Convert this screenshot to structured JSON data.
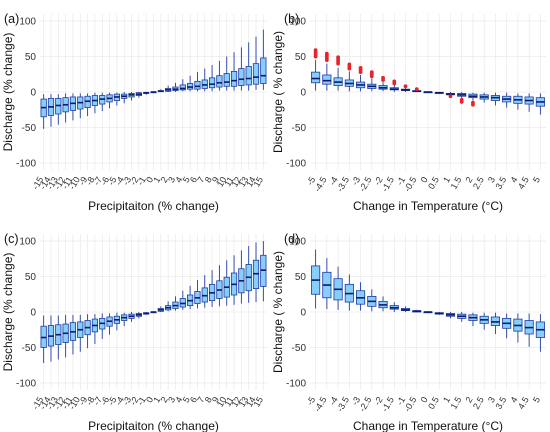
{
  "colors": {
    "box_fill": "#87CEFA",
    "box_edge": "#1f3aa6",
    "median": "#0b1a6e",
    "outlier": "#e8232d",
    "grid": "#e6e6e6"
  },
  "chart_data": [
    {
      "panel": "(a)",
      "type": "box",
      "xlabel": "Precipitaiton (% change)",
      "ylabel": "Discharge (% change)",
      "ylim": [
        -110,
        110
      ],
      "yticks": [
        -100,
        -50,
        0,
        50,
        100
      ],
      "grid": true,
      "categories": [
        "-15",
        "-14",
        "-13",
        "-12",
        "-11",
        "-10",
        "-9",
        "-8",
        "-7",
        "-6",
        "-5",
        "-4",
        "-3",
        "-2",
        "-1",
        "0",
        "1",
        "2",
        "3",
        "4",
        "5",
        "6",
        "7",
        "8",
        "9",
        "10",
        "11",
        "12",
        "13",
        "14",
        "15"
      ],
      "tick_labels": [
        "-15",
        "-14",
        "-13",
        "-12",
        "-11",
        "-10",
        "-9",
        "-8",
        "-7",
        "-6",
        "-5",
        "-4",
        "-3",
        "-2",
        "-1",
        "0",
        "1",
        "2",
        "3",
        "4",
        "5",
        "6",
        "7",
        "8",
        "9",
        "10",
        "11",
        "12",
        "13",
        "14",
        "15"
      ],
      "boxes": [
        {
          "min": -52,
          "q1": -35,
          "median": -22,
          "q3": -10,
          "max": -3
        },
        {
          "min": -49,
          "q1": -33,
          "median": -21,
          "q3": -9,
          "max": -3
        },
        {
          "min": -46,
          "q1": -31,
          "median": -19,
          "q3": -9,
          "max": -3
        },
        {
          "min": -43,
          "q1": -28,
          "median": -18,
          "q3": -8,
          "max": -2
        },
        {
          "min": -40,
          "q1": -26,
          "median": -16,
          "q3": -7,
          "max": -2
        },
        {
          "min": -37,
          "q1": -24,
          "median": -15,
          "q3": -7,
          "max": -2
        },
        {
          "min": -34,
          "q1": -22,
          "median": -13,
          "q3": -6,
          "max": -2
        },
        {
          "min": -30,
          "q1": -19,
          "median": -12,
          "q3": -5,
          "max": -1
        },
        {
          "min": -27,
          "q1": -17,
          "median": -10,
          "q3": -5,
          "max": -1
        },
        {
          "min": -23,
          "q1": -14,
          "median": -9,
          "q3": -4,
          "max": -1
        },
        {
          "min": -19,
          "q1": -12,
          "median": -7,
          "q3": -3,
          "max": -1
        },
        {
          "min": -16,
          "q1": -9,
          "median": -6,
          "q3": -3,
          "max": 0
        },
        {
          "min": -12,
          "q1": -7,
          "median": -4,
          "q3": -2,
          "max": 0
        },
        {
          "min": -8,
          "q1": -5,
          "median": -3,
          "q3": -1,
          "max": 0
        },
        {
          "min": -4,
          "q1": -2,
          "median": -1,
          "q3": -1,
          "max": 0
        },
        {
          "min": 0,
          "q1": 0,
          "median": 0,
          "q3": 0,
          "max": 0
        },
        {
          "min": 0,
          "q1": 1,
          "median": 1,
          "q3": 2,
          "max": 4
        },
        {
          "min": 0,
          "q1": 1,
          "median": 3,
          "q3": 5,
          "max": 9
        },
        {
          "min": 0,
          "q1": 2,
          "median": 4,
          "q3": 7,
          "max": 13
        },
        {
          "min": 1,
          "q1": 3,
          "median": 5,
          "q3": 10,
          "max": 18
        },
        {
          "min": 1,
          "q1": 4,
          "median": 7,
          "q3": 12,
          "max": 23
        },
        {
          "min": 1,
          "q1": 4,
          "median": 8,
          "q3": 15,
          "max": 28
        },
        {
          "min": 1,
          "q1": 5,
          "median": 10,
          "q3": 17,
          "max": 33
        },
        {
          "min": 1,
          "q1": 6,
          "median": 11,
          "q3": 20,
          "max": 38
        },
        {
          "min": 2,
          "q1": 7,
          "median": 13,
          "q3": 23,
          "max": 44
        },
        {
          "min": 2,
          "q1": 8,
          "median": 14,
          "q3": 26,
          "max": 50
        },
        {
          "min": 2,
          "q1": 8,
          "median": 16,
          "q3": 29,
          "max": 56
        },
        {
          "min": 2,
          "q1": 9,
          "median": 18,
          "q3": 33,
          "max": 63
        },
        {
          "min": 2,
          "q1": 10,
          "median": 19,
          "q3": 36,
          "max": 70
        },
        {
          "min": 3,
          "q1": 11,
          "median": 21,
          "q3": 40,
          "max": 78
        },
        {
          "min": 3,
          "q1": 12,
          "median": 23,
          "q3": 48,
          "max": 88
        }
      ],
      "outliers": []
    },
    {
      "panel": "(b)",
      "type": "box",
      "xlabel": "Change in Temperature (°C)",
      "ylabel": "Discharge ( % change)",
      "ylim": [
        -110,
        110
      ],
      "yticks": [
        -100,
        -50,
        0,
        50,
        100
      ],
      "grid": true,
      "categories": [
        "-5",
        "-4.5",
        "-4",
        "-3.5",
        "-3",
        "-2.5",
        "-2",
        "-1.5",
        "-1",
        "-0.5",
        "0",
        "0.5",
        "1",
        "1.5",
        "2",
        "2.5",
        "3",
        "3.5",
        "4",
        "4.5",
        "5"
      ],
      "tick_labels": [
        "-5",
        "-4.5",
        "-4",
        "-3.5",
        "-3",
        "-2.5",
        "-2",
        "-1.5",
        "-1",
        "-0.5",
        "0",
        "0.5",
        "1",
        "1.5",
        "2",
        "2.5",
        "3",
        "3.5",
        "4",
        "4.5",
        "5"
      ],
      "boxes": [
        {
          "min": 2,
          "q1": 13,
          "median": 19,
          "q3": 28,
          "max": 45
        },
        {
          "min": 2,
          "q1": 11,
          "median": 16,
          "q3": 24,
          "max": 40
        },
        {
          "min": 2,
          "q1": 9,
          "median": 14,
          "q3": 20,
          "max": 34
        },
        {
          "min": 1,
          "q1": 8,
          "median": 12,
          "q3": 17,
          "max": 29
        },
        {
          "min": 1,
          "q1": 6,
          "median": 10,
          "q3": 14,
          "max": 24
        },
        {
          "min": 1,
          "q1": 5,
          "median": 8,
          "q3": 11,
          "max": 19
        },
        {
          "min": 1,
          "q1": 4,
          "median": 6,
          "q3": 9,
          "max": 14
        },
        {
          "min": 0,
          "q1": 3,
          "median": 4,
          "q3": 6,
          "max": 10
        },
        {
          "min": 0,
          "q1": 2,
          "median": 3,
          "q3": 4,
          "max": 6
        },
        {
          "min": 0,
          "q1": 1,
          "median": 1,
          "q3": 2,
          "max": 3
        },
        {
          "min": 0,
          "q1": 0,
          "median": 0,
          "q3": 0,
          "max": 0
        },
        {
          "min": -3,
          "q1": -2,
          "median": -1,
          "q3": -1,
          "max": 0
        },
        {
          "min": -6,
          "q1": -4,
          "median": -3,
          "q3": -2,
          "max": 0
        },
        {
          "min": -9,
          "q1": -6,
          "median": -4,
          "q3": -2,
          "max": 0
        },
        {
          "min": -12,
          "q1": -8,
          "median": -6,
          "q3": -3,
          "max": -1
        },
        {
          "min": -15,
          "q1": -10,
          "median": -7,
          "q3": -4,
          "max": -1
        },
        {
          "min": -19,
          "q1": -12,
          "median": -8,
          "q3": -5,
          "max": -1
        },
        {
          "min": -22,
          "q1": -14,
          "median": -10,
          "q3": -6,
          "max": -1
        },
        {
          "min": -25,
          "q1": -16,
          "median": -11,
          "q3": -6,
          "max": -2
        },
        {
          "min": -28,
          "q1": -17,
          "median": -12,
          "q3": -7,
          "max": -2
        },
        {
          "min": -32,
          "q1": -20,
          "median": -14,
          "q3": -8,
          "max": -2
        }
      ],
      "outliers": [
        {
          "category": "-5",
          "values": [
            50,
            53,
            56,
            59
          ]
        },
        {
          "category": "-4.5",
          "values": [
            45,
            48,
            51,
            54
          ]
        },
        {
          "category": "-4",
          "values": [
            40,
            43,
            46,
            49
          ]
        },
        {
          "category": "-3.5",
          "values": [
            33,
            36,
            39
          ]
        },
        {
          "category": "-3",
          "values": [
            28,
            31,
            34
          ]
        },
        {
          "category": "-2.5",
          "values": [
            22,
            25,
            28
          ]
        },
        {
          "category": "-2",
          "values": [
            17,
            20
          ]
        },
        {
          "category": "-1.5",
          "values": [
            12,
            15
          ]
        },
        {
          "category": "-1",
          "values": [
            8
          ]
        },
        {
          "category": "-0.5",
          "values": [
            4
          ]
        },
        {
          "category": "1",
          "values": [
            -6
          ]
        },
        {
          "category": "1.5",
          "values": [
            -11,
            -14
          ]
        },
        {
          "category": "2",
          "values": [
            -15,
            -18
          ]
        }
      ]
    },
    {
      "panel": "(c)",
      "type": "box",
      "xlabel": "Precipitaiton (% change)",
      "ylabel": "Discharge (% change)",
      "ylim": [
        -110,
        110
      ],
      "yticks": [
        -100,
        -50,
        0,
        50,
        100
      ],
      "grid": true,
      "categories": [
        "-15",
        "-14",
        "-13",
        "-12",
        "-11",
        "-10",
        "-9",
        "-8",
        "-7",
        "-6",
        "-5",
        "-4",
        "-3",
        "-2",
        "-1",
        "0",
        "1",
        "2",
        "3",
        "4",
        "5",
        "6",
        "7",
        "8",
        "9",
        "10",
        "11",
        "12",
        "13",
        "14",
        "15"
      ],
      "tick_labels": [
        "-15",
        "-14",
        "-13",
        "-12",
        "-11",
        "-10",
        "-9",
        "-8",
        "-7",
        "-6",
        "-5",
        "-4",
        "-3",
        "-2",
        "-1",
        "0",
        "1",
        "2",
        "3",
        "4",
        "5",
        "6",
        "7",
        "8",
        "9",
        "10",
        "11",
        "12",
        "13",
        "14",
        "15"
      ],
      "boxes": [
        {
          "min": -72,
          "q1": -50,
          "median": -36,
          "q3": -20,
          "max": -5
        },
        {
          "min": -70,
          "q1": -48,
          "median": -34,
          "q3": -19,
          "max": -5
        },
        {
          "min": -67,
          "q1": -46,
          "median": -32,
          "q3": -18,
          "max": -5
        },
        {
          "min": -64,
          "q1": -43,
          "median": -30,
          "q3": -17,
          "max": -4
        },
        {
          "min": -60,
          "q1": -40,
          "median": -28,
          "q3": -15,
          "max": -4
        },
        {
          "min": -56,
          "q1": -36,
          "median": -25,
          "q3": -14,
          "max": -4
        },
        {
          "min": -51,
          "q1": -32,
          "median": -22,
          "q3": -12,
          "max": -3
        },
        {
          "min": -45,
          "q1": -28,
          "median": -19,
          "q3": -10,
          "max": -3
        },
        {
          "min": -38,
          "q1": -24,
          "median": -16,
          "q3": -9,
          "max": -2
        },
        {
          "min": -32,
          "q1": -20,
          "median": -13,
          "q3": -7,
          "max": -2
        },
        {
          "min": -26,
          "q1": -16,
          "median": -11,
          "q3": -6,
          "max": -1
        },
        {
          "min": -20,
          "q1": -12,
          "median": -8,
          "q3": -4,
          "max": -1
        },
        {
          "min": -14,
          "q1": -9,
          "median": -6,
          "q3": -3,
          "max": 0
        },
        {
          "min": -9,
          "q1": -6,
          "median": -4,
          "q3": -2,
          "max": 0
        },
        {
          "min": -4,
          "q1": -3,
          "median": -2,
          "q3": -1,
          "max": 0
        },
        {
          "min": 0,
          "q1": 0,
          "median": 0,
          "q3": 0,
          "max": 0
        },
        {
          "min": 0,
          "q1": 1,
          "median": 3,
          "q3": 5,
          "max": 8
        },
        {
          "min": 1,
          "q1": 3,
          "median": 6,
          "q3": 9,
          "max": 15
        },
        {
          "min": 2,
          "q1": 5,
          "median": 9,
          "q3": 14,
          "max": 22
        },
        {
          "min": 3,
          "q1": 7,
          "median": 12,
          "q3": 19,
          "max": 30
        },
        {
          "min": 4,
          "q1": 9,
          "median": 16,
          "q3": 24,
          "max": 37
        },
        {
          "min": 5,
          "q1": 12,
          "median": 20,
          "q3": 29,
          "max": 45
        },
        {
          "min": 6,
          "q1": 14,
          "median": 23,
          "q3": 34,
          "max": 52
        },
        {
          "min": 7,
          "q1": 16,
          "median": 27,
          "q3": 39,
          "max": 59
        },
        {
          "min": 8,
          "q1": 19,
          "median": 31,
          "q3": 44,
          "max": 66
        },
        {
          "min": 9,
          "q1": 21,
          "median": 35,
          "q3": 49,
          "max": 73
        },
        {
          "min": 10,
          "q1": 24,
          "median": 39,
          "q3": 55,
          "max": 80
        },
        {
          "min": 12,
          "q1": 27,
          "median": 44,
          "q3": 61,
          "max": 87
        },
        {
          "min": 13,
          "q1": 30,
          "median": 49,
          "q3": 67,
          "max": 93
        },
        {
          "min": 14,
          "q1": 33,
          "median": 54,
          "q3": 73,
          "max": 98
        },
        {
          "min": 15,
          "q1": 36,
          "median": 59,
          "q3": 80,
          "max": 100
        }
      ],
      "outliers": []
    },
    {
      "panel": "(d)",
      "type": "box",
      "xlabel": "Change in Temperature (°C)",
      "ylabel": "Discharge ( % change)",
      "ylim": [
        -110,
        110
      ],
      "yticks": [
        -100,
        -50,
        0,
        50,
        100
      ],
      "grid": true,
      "categories": [
        "-5",
        "-4.5",
        "-4",
        "-3.5",
        "-3",
        "-2.5",
        "-2",
        "-1.5",
        "-1",
        "-0.5",
        "0",
        "0.5",
        "1",
        "1.5",
        "2",
        "2.5",
        "3",
        "3.5",
        "4",
        "4.5",
        "5"
      ],
      "tick_labels": [
        "-5",
        "-4.5",
        "-4",
        "-3.5",
        "-3",
        "-2.5",
        "-2",
        "-1.5",
        "-1",
        "-0.5",
        "0",
        "0.5",
        "1",
        "1.5",
        "2",
        "2.5",
        "3",
        "3.5",
        "4",
        "4.5",
        "5"
      ],
      "boxes": [
        {
          "min": 5,
          "q1": 25,
          "median": 45,
          "q3": 65,
          "max": 88
        },
        {
          "min": 4,
          "q1": 20,
          "median": 38,
          "q3": 56,
          "max": 76
        },
        {
          "min": 3,
          "q1": 17,
          "median": 32,
          "q3": 47,
          "max": 64
        },
        {
          "min": 2,
          "q1": 14,
          "median": 26,
          "q3": 39,
          "max": 53
        },
        {
          "min": 2,
          "q1": 11,
          "median": 20,
          "q3": 30,
          "max": 42
        },
        {
          "min": 1,
          "q1": 8,
          "median": 15,
          "q3": 22,
          "max": 32
        },
        {
          "min": 1,
          "q1": 6,
          "median": 10,
          "q3": 15,
          "max": 22
        },
        {
          "min": 0,
          "q1": 4,
          "median": 6,
          "q3": 9,
          "max": 14
        },
        {
          "min": 0,
          "q1": 2,
          "median": 3,
          "q3": 5,
          "max": 8
        },
        {
          "min": 0,
          "q1": 0,
          "median": 1,
          "q3": 2,
          "max": 3
        },
        {
          "min": 0,
          "q1": 0,
          "median": 0,
          "q3": 0,
          "max": 0
        },
        {
          "min": -4,
          "q1": -3,
          "median": -2,
          "q3": -1,
          "max": 0
        },
        {
          "min": -9,
          "q1": -6,
          "median": -4,
          "q3": -2,
          "max": 0
        },
        {
          "min": -14,
          "q1": -9,
          "median": -6,
          "q3": -3,
          "max": 0
        },
        {
          "min": -20,
          "q1": -12,
          "median": -8,
          "q3": -4,
          "max": -1
        },
        {
          "min": -25,
          "q1": -16,
          "median": -11,
          "q3": -6,
          "max": -1
        },
        {
          "min": -31,
          "q1": -19,
          "median": -14,
          "q3": -7,
          "max": -1
        },
        {
          "min": -37,
          "q1": -23,
          "median": -16,
          "q3": -9,
          "max": -2
        },
        {
          "min": -43,
          "q1": -27,
          "median": -19,
          "q3": -10,
          "max": -2
        },
        {
          "min": -49,
          "q1": -31,
          "median": -22,
          "q3": -12,
          "max": -2
        },
        {
          "min": -56,
          "q1": -36,
          "median": -25,
          "q3": -14,
          "max": -3
        }
      ],
      "outliers": []
    }
  ]
}
